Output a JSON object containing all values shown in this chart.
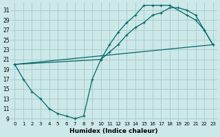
{
  "xlabel": "Humidex (Indice chaleur)",
  "bg_color": "#cce8e8",
  "grid_color": "#aacccc",
  "line_color": "#006666",
  "xlim": [
    -0.5,
    23.5
  ],
  "ylim": [
    8.5,
    32.5
  ],
  "xticks": [
    0,
    1,
    2,
    3,
    4,
    5,
    6,
    7,
    8,
    9,
    10,
    11,
    12,
    13,
    14,
    15,
    16,
    17,
    18,
    19,
    20,
    21,
    22,
    23
  ],
  "yticks": [
    9,
    11,
    13,
    15,
    17,
    19,
    21,
    23,
    25,
    27,
    29,
    31
  ],
  "line1_x": [
    0,
    1,
    2,
    3,
    4,
    5,
    6,
    7,
    8,
    9,
    10,
    11,
    12,
    13,
    14,
    15,
    16,
    17,
    18,
    20,
    21,
    22,
    23
  ],
  "line1_y": [
    20,
    17,
    14.5,
    13,
    11,
    10,
    9.5,
    9,
    9.5,
    17,
    21,
    24,
    26.5,
    28.5,
    30,
    32,
    32,
    32,
    32,
    30,
    29,
    27,
    24
  ],
  "line2_x": [
    0,
    10,
    11,
    12,
    13,
    14,
    15,
    16,
    17,
    18,
    19,
    20,
    21,
    22,
    23
  ],
  "line2_y": [
    20,
    21,
    22.5,
    24,
    26,
    27.5,
    28.5,
    30,
    30.5,
    31.5,
    31.5,
    31,
    30,
    27,
    24
  ],
  "line3_x": [
    0,
    23
  ],
  "line3_y": [
    20,
    24
  ]
}
